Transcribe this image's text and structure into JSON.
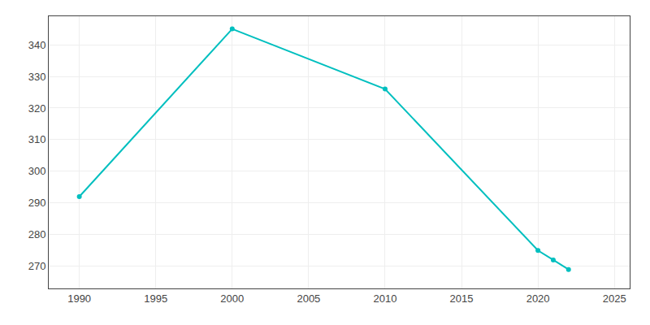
{
  "chart_data": {
    "type": "line",
    "x": [
      1990,
      2000,
      2010,
      2020,
      2021,
      2022
    ],
    "values": [
      292,
      345,
      326,
      275,
      272,
      269
    ],
    "color": "#00BFBF",
    "marker": "circle",
    "xlim": [
      1988,
      2026
    ],
    "ylim": [
      263,
      349
    ],
    "xticks": [
      1990,
      1995,
      2000,
      2005,
      2010,
      2015,
      2020,
      2025
    ],
    "yticks": [
      270,
      280,
      290,
      300,
      310,
      320,
      330,
      340
    ],
    "grid": true
  }
}
